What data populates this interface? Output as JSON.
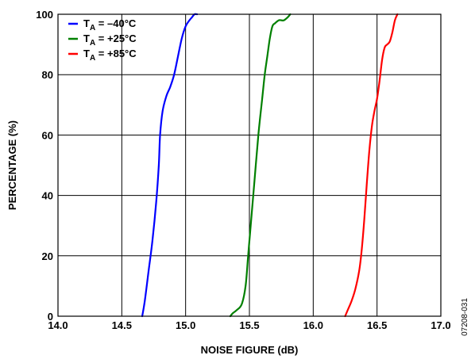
{
  "chart_data": {
    "type": "line",
    "xlabel": "NOISE FIGURE (dB)",
    "ylabel": "PERCENTAGE (%)",
    "xlim": [
      14.0,
      17.0
    ],
    "ylim": [
      0,
      100
    ],
    "xticks": [
      "14.0",
      "14.5",
      "15.0",
      "15.5",
      "16.0",
      "16.5",
      "17.0"
    ],
    "xtick_values": [
      14.0,
      14.5,
      15.0,
      15.5,
      16.0,
      16.5,
      17.0
    ],
    "yticks": [
      "0",
      "20",
      "40",
      "60",
      "80",
      "100"
    ],
    "ytick_values": [
      0,
      20,
      40,
      60,
      80,
      100
    ],
    "grid": true,
    "legend_position": "top-left",
    "series": [
      {
        "name_main": "T",
        "name_sub": "A",
        "name_rest": " = –40°C",
        "color": "#0000ff",
        "x": [
          14.66,
          14.68,
          14.71,
          14.74,
          14.77,
          14.79,
          14.8,
          14.82,
          14.85,
          14.88,
          14.91,
          14.94,
          14.97,
          15.0,
          15.03,
          15.05,
          15.07,
          15.09
        ],
        "y": [
          0,
          5,
          15,
          25,
          38,
          50,
          60,
          68,
          73,
          76,
          80,
          86,
          92,
          96,
          98,
          99,
          100,
          100
        ]
      },
      {
        "name_main": "T",
        "name_sub": "A",
        "name_rest": " = +25°C",
        "color": "#008000",
        "x": [
          15.35,
          15.37,
          15.4,
          15.44,
          15.47,
          15.49,
          15.51,
          15.54,
          15.57,
          15.6,
          15.62,
          15.64,
          15.66,
          15.68,
          15.7,
          15.73,
          15.75,
          15.77,
          15.8,
          15.82
        ],
        "y": [
          0,
          1,
          2,
          4,
          10,
          20,
          30,
          45,
          60,
          72,
          80,
          86,
          92,
          96,
          97,
          98,
          98,
          98,
          99,
          100
        ]
      },
      {
        "name_main": "T",
        "name_sub": "A",
        "name_rest": " = +85°C",
        "color": "#ff0000",
        "x": [
          16.25,
          16.27,
          16.3,
          16.33,
          16.36,
          16.38,
          16.4,
          16.42,
          16.44,
          16.46,
          16.48,
          16.5,
          16.52,
          16.54,
          16.56,
          16.58,
          16.6,
          16.62,
          16.64,
          16.66
        ],
        "y": [
          0,
          2,
          5,
          9,
          15,
          22,
          32,
          44,
          55,
          63,
          68,
          72,
          78,
          85,
          89,
          90,
          91,
          94,
          98,
          100
        ]
      }
    ]
  },
  "figure_code": "07208-031"
}
